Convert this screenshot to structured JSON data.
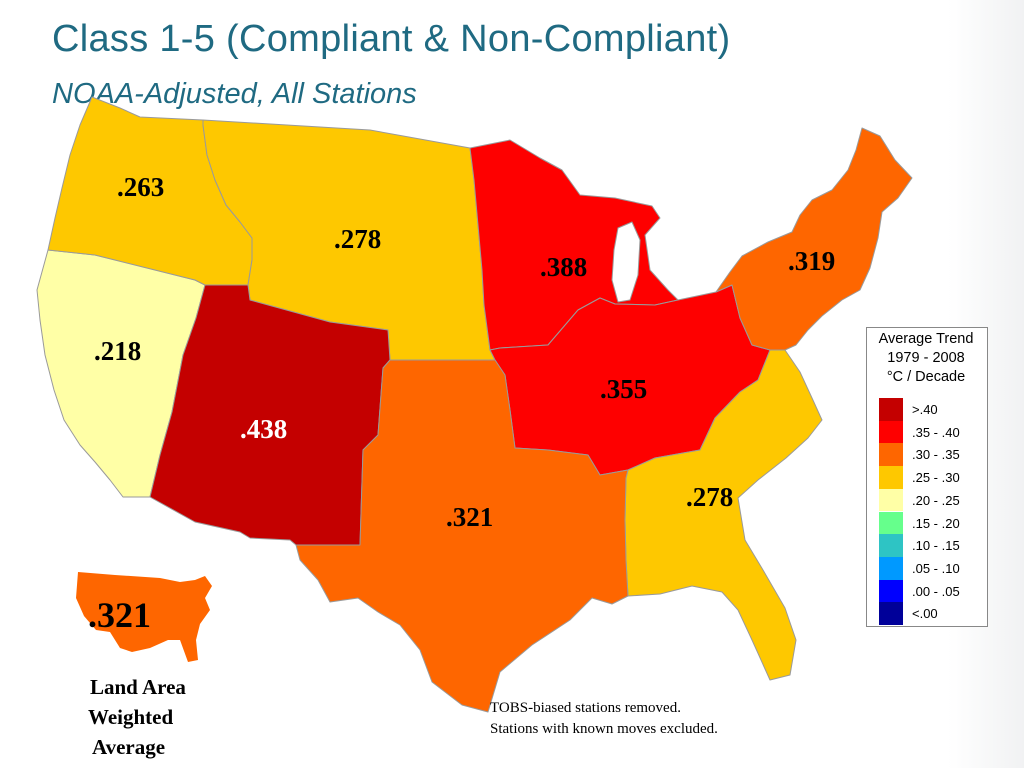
{
  "title": "Class 1-5 (Compliant & Non-Compliant)",
  "subtitle": "NOAA-Adjusted, All Stations",
  "region_values": {
    "northwest": ".263",
    "north_plains": ".278",
    "west_coast": ".218",
    "southwest": ".438",
    "upper_midwest": ".388",
    "ohio_valley": ".355",
    "northeast": ".319",
    "south": ".321",
    "southeast": ".278"
  },
  "region_colors": {
    "northwest": "#fec800",
    "north_plains": "#fec800",
    "west_coast": "#ffffa6",
    "southwest": "#c40000",
    "upper_midwest": "#fe0000",
    "ohio_valley": "#fe0000",
    "northeast": "#fe6600",
    "south": "#fe6600",
    "southeast": "#fec800"
  },
  "legend": {
    "title_lines": [
      "Average Trend",
      "1979 - 2008",
      "°C / Decade"
    ],
    "items": [
      {
        "label": ">.40",
        "color": "#c40000"
      },
      {
        "label": ".35 - .40",
        "color": "#fe0000"
      },
      {
        "label": ".30 - .35",
        "color": "#fe6600"
      },
      {
        "label": ".25 - .30",
        "color": "#fec800"
      },
      {
        "label": ".20 - .25",
        "color": "#ffffa6"
      },
      {
        "label": ".15 - .20",
        "color": "#66ff8c"
      },
      {
        "label": ".10 - .15",
        "color": "#2ec4c4"
      },
      {
        "label": ".05 - .10",
        "color": "#0099ff"
      },
      {
        "label": ".00 - .05",
        "color": "#0000ff"
      },
      {
        "label": "<.00",
        "color": "#000099"
      }
    ]
  },
  "inset": {
    "value": ".321",
    "color": "#fe6600",
    "caption_lines": [
      "Land Area",
      "Weighted",
      "Average"
    ]
  },
  "notes": [
    "TOBS-biased stations removed.",
    "Stations with known moves excluded."
  ]
}
